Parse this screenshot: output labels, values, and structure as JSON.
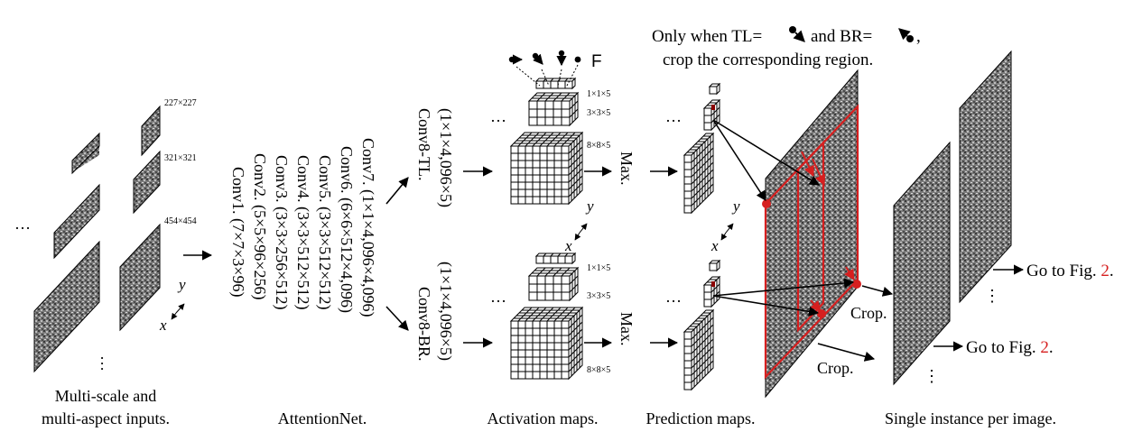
{
  "inputs": {
    "ellipsis_left": "…",
    "ellipsis_bottom": "…",
    "size_small": "227×227",
    "size_medium": "321×321",
    "size_large": "454×454",
    "axis_y": "y",
    "axis_x": "x",
    "caption_line1": "Multi-scale and",
    "caption_line2": "multi-aspect inputs."
  },
  "attention_net": {
    "layers": [
      "Conv1. (7×7×3×96)",
      "Conv2. (5×5×96×256)",
      "Conv3. (3×3×256×512)",
      "Conv4. (3×3×512×512)",
      "Conv5. (3×3×512×512)",
      "Conv6. (6×6×512×4,096)",
      "Conv7. (1×1×4,096×4,096)"
    ],
    "caption": "AttentionNet."
  },
  "branches": {
    "tl_name": "Conv8-TL.",
    "tl_dims": "(1×1×4,096×5)",
    "br_name": "Conv8-BR.",
    "br_dims": "(1×1×4,096×5)"
  },
  "activation": {
    "ellipsis": "…",
    "size_1": "1×1×5",
    "size_3": "3×3×5",
    "size_8": "8×8×5",
    "axis_y": "y",
    "axis_x": "x",
    "f_label": "F",
    "caption": "Activation maps."
  },
  "max_labels": {
    "top": "Max.",
    "bottom": "Max."
  },
  "prediction": {
    "ellipsis": "…",
    "caption": "Prediction maps.",
    "axis_y": "y",
    "axis_x": "x"
  },
  "crop_rule": {
    "line1_a": "Only when TL=",
    "line1_b": " and BR=",
    "line1_c": " ,",
    "line2": "crop the corresponding region."
  },
  "crops": {
    "crop_a": "Crop.",
    "crop_b": "Crop."
  },
  "outputs": {
    "goto_text": "Go to Fig. ",
    "goto_num": "2",
    "goto_tail": ".",
    "ellipsis": "⋮",
    "caption": "Single instance per image."
  }
}
